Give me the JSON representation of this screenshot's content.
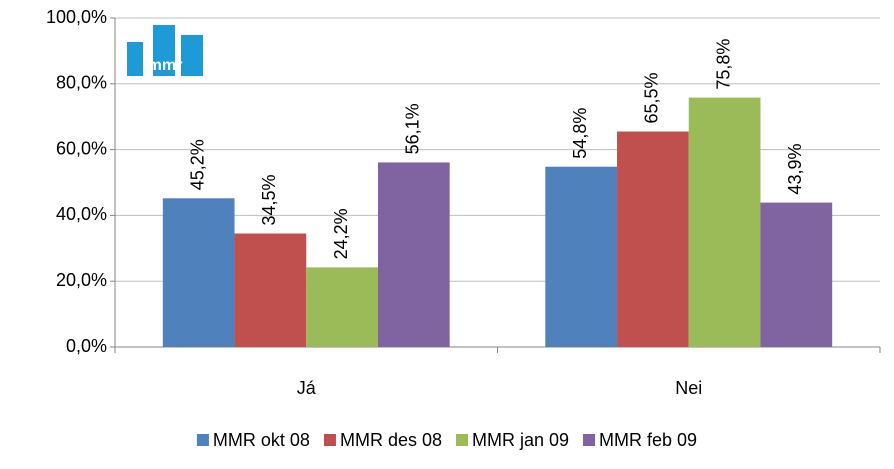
{
  "chart_data": {
    "type": "bar",
    "logo": "mmr",
    "categories": [
      "Já",
      "Nei"
    ],
    "series": [
      {
        "name": "MMR okt 08",
        "color": "#4f81bd",
        "values": [
          45.2,
          54.8
        ],
        "value_labels": [
          "45,2%",
          "54,8%"
        ]
      },
      {
        "name": "MMR des 08",
        "color": "#c0504d",
        "values": [
          34.5,
          65.5
        ],
        "value_labels": [
          "34,5%",
          "65,5%"
        ]
      },
      {
        "name": "MMR jan 09",
        "color": "#9bbb59",
        "values": [
          24.2,
          75.8
        ],
        "value_labels": [
          "24,2%",
          "75,8%"
        ]
      },
      {
        "name": "MMR feb 09",
        "color": "#8064a2",
        "values": [
          56.1,
          43.9
        ],
        "value_labels": [
          "56,1%",
          "43,9%"
        ]
      }
    ],
    "ylim": [
      0,
      100
    ],
    "yticks": [
      {
        "value": 0,
        "label": "0,0%"
      },
      {
        "value": 20,
        "label": "20,0%"
      },
      {
        "value": 40,
        "label": "40,0%"
      },
      {
        "value": 60,
        "label": "60,0%"
      },
      {
        "value": 80,
        "label": "80,0%"
      },
      {
        "value": 100,
        "label": "100,0%"
      }
    ],
    "grid": true
  }
}
